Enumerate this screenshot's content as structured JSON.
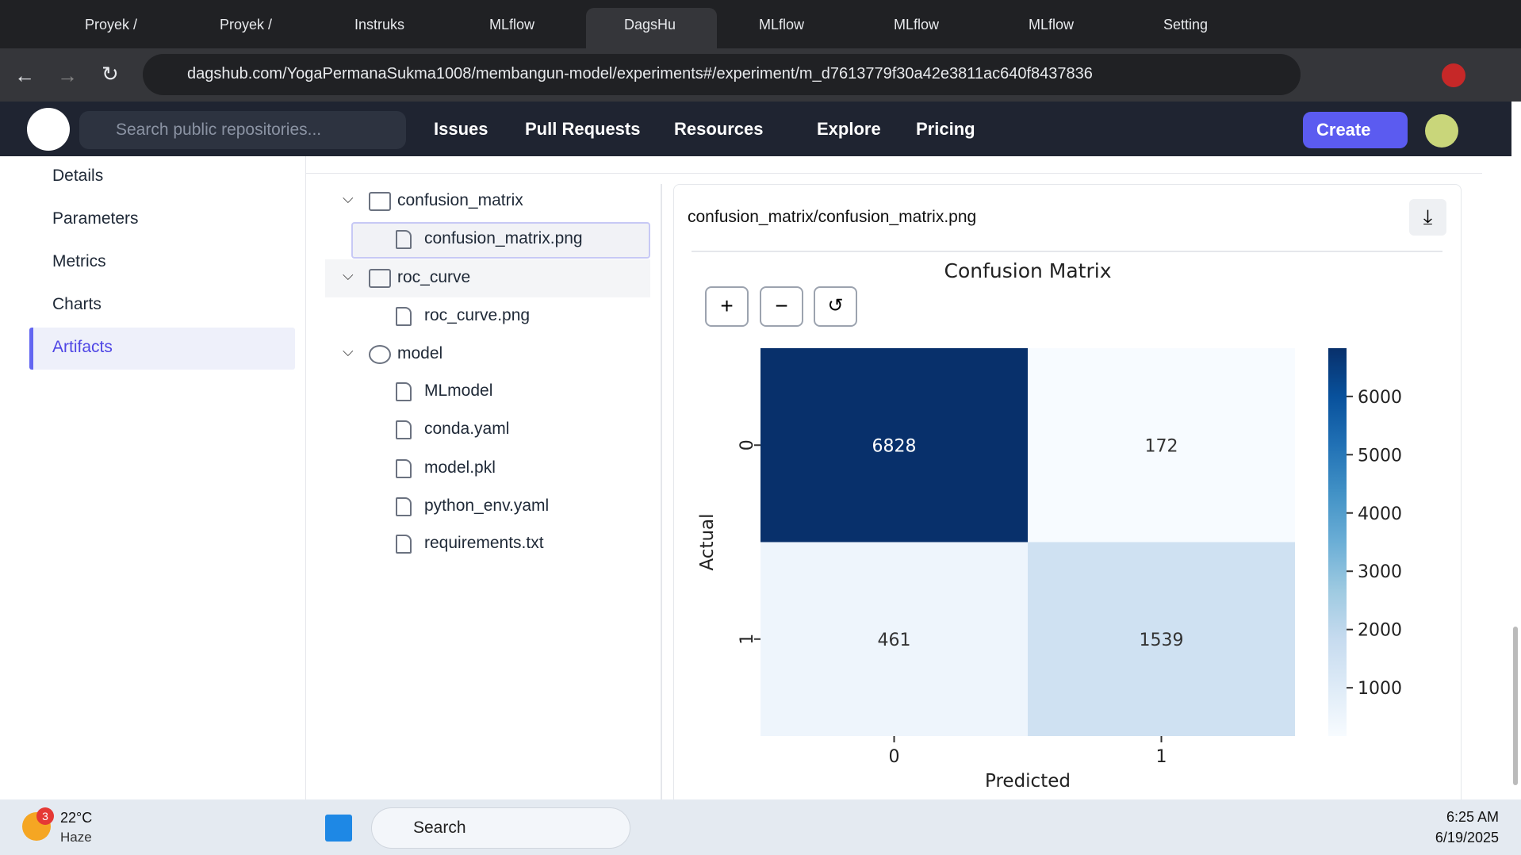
{
  "browser": {
    "tabs": [
      "Proyek /",
      "Proyek /",
      "Instruks",
      "MLflow",
      "DagsHu",
      "MLflow",
      "MLflow",
      "MLflow",
      "Setting"
    ],
    "active_tab": 4,
    "url": "dagshub.com/YogaPermanaSukma1008/membangun-model/experiments#/experiment/m_d7613779f30a42e3811ac640f8437836"
  },
  "navbar": {
    "search_placeholder": "Search public repositories...",
    "links": [
      "Issues",
      "Pull Requests",
      "Resources",
      "Explore",
      "Pricing"
    ],
    "create": "Create"
  },
  "sidebar": {
    "items": [
      "Details",
      "Parameters",
      "Metrics",
      "Charts",
      "Artifacts"
    ],
    "active": 4
  },
  "tree": [
    {
      "name": "confusion_matrix",
      "kind": "folder",
      "depth": 0
    },
    {
      "name": "confusion_matrix.png",
      "kind": "file",
      "depth": 1,
      "selected": true
    },
    {
      "name": "roc_curve",
      "kind": "folder",
      "depth": 0
    },
    {
      "name": "roc_curve.png",
      "kind": "file",
      "depth": 1
    },
    {
      "name": "model",
      "kind": "model",
      "depth": 0
    },
    {
      "name": "MLmodel",
      "kind": "file",
      "depth": 1
    },
    {
      "name": "conda.yaml",
      "kind": "file",
      "depth": 1
    },
    {
      "name": "model.pkl",
      "kind": "file",
      "depth": 1
    },
    {
      "name": "python_env.yaml",
      "kind": "file",
      "depth": 1
    },
    {
      "name": "requirements.txt",
      "kind": "file",
      "depth": 1
    }
  ],
  "preview": {
    "path": "confusion_matrix/confusion_matrix.png"
  },
  "chart_data": {
    "type": "heatmap",
    "title": "Confusion Matrix",
    "xlabel": "Predicted",
    "ylabel": "Actual",
    "categories": [
      "0",
      "1"
    ],
    "y_categories": [
      "0",
      "1"
    ],
    "values": [
      [
        6828,
        172
      ],
      [
        461,
        1539
      ]
    ],
    "colormap": "Blues",
    "clim": [
      172,
      6828
    ],
    "cticks": [
      1000,
      2000,
      3000,
      4000,
      5000,
      6000
    ]
  },
  "taskbar": {
    "badge": "3",
    "temperature": "22°C",
    "weather": "Haze",
    "search": "Search",
    "time": "6:25 AM",
    "date": "6/19/2025"
  }
}
